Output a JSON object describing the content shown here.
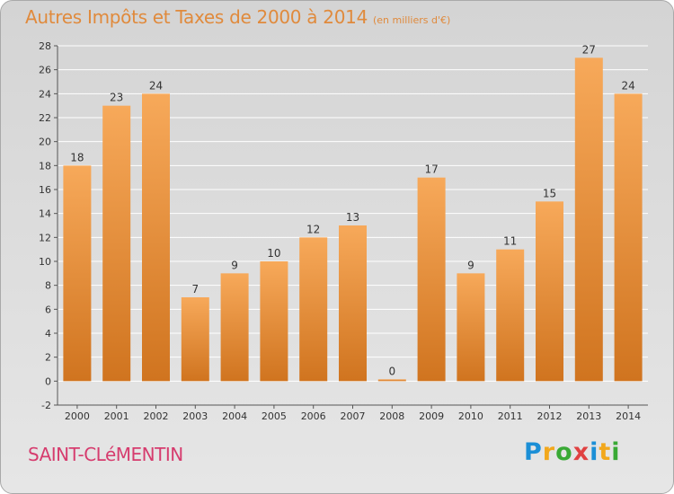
{
  "title": {
    "main": "Autres Impôts et Taxes de 2000 à 2014",
    "unit": "(en milliers d'€)"
  },
  "place_name": "SAINT-CLéMENTIN",
  "brand": {
    "letters": [
      "P",
      "r",
      "o",
      "x",
      "i",
      "t",
      "i"
    ]
  },
  "colors": {
    "bar_light": "#f7a95a",
    "bar_dark": "#d0741f",
    "title": "#e08a3c",
    "place": "#d63c6e",
    "grid": "#ffffff"
  },
  "chart_data": {
    "type": "bar",
    "categories": [
      "2000",
      "2001",
      "2002",
      "2003",
      "2004",
      "2005",
      "2006",
      "2007",
      "2008",
      "2009",
      "2010",
      "2011",
      "2012",
      "2013",
      "2014"
    ],
    "values": [
      18,
      23,
      24,
      7,
      9,
      10,
      12,
      13,
      0,
      17,
      9,
      11,
      15,
      27,
      24
    ],
    "ylim": [
      -2,
      28
    ],
    "yticks": [
      -2,
      0,
      2,
      4,
      6,
      8,
      10,
      12,
      14,
      16,
      18,
      20,
      22,
      24,
      26,
      28
    ],
    "grid": true,
    "legend": "none"
  }
}
